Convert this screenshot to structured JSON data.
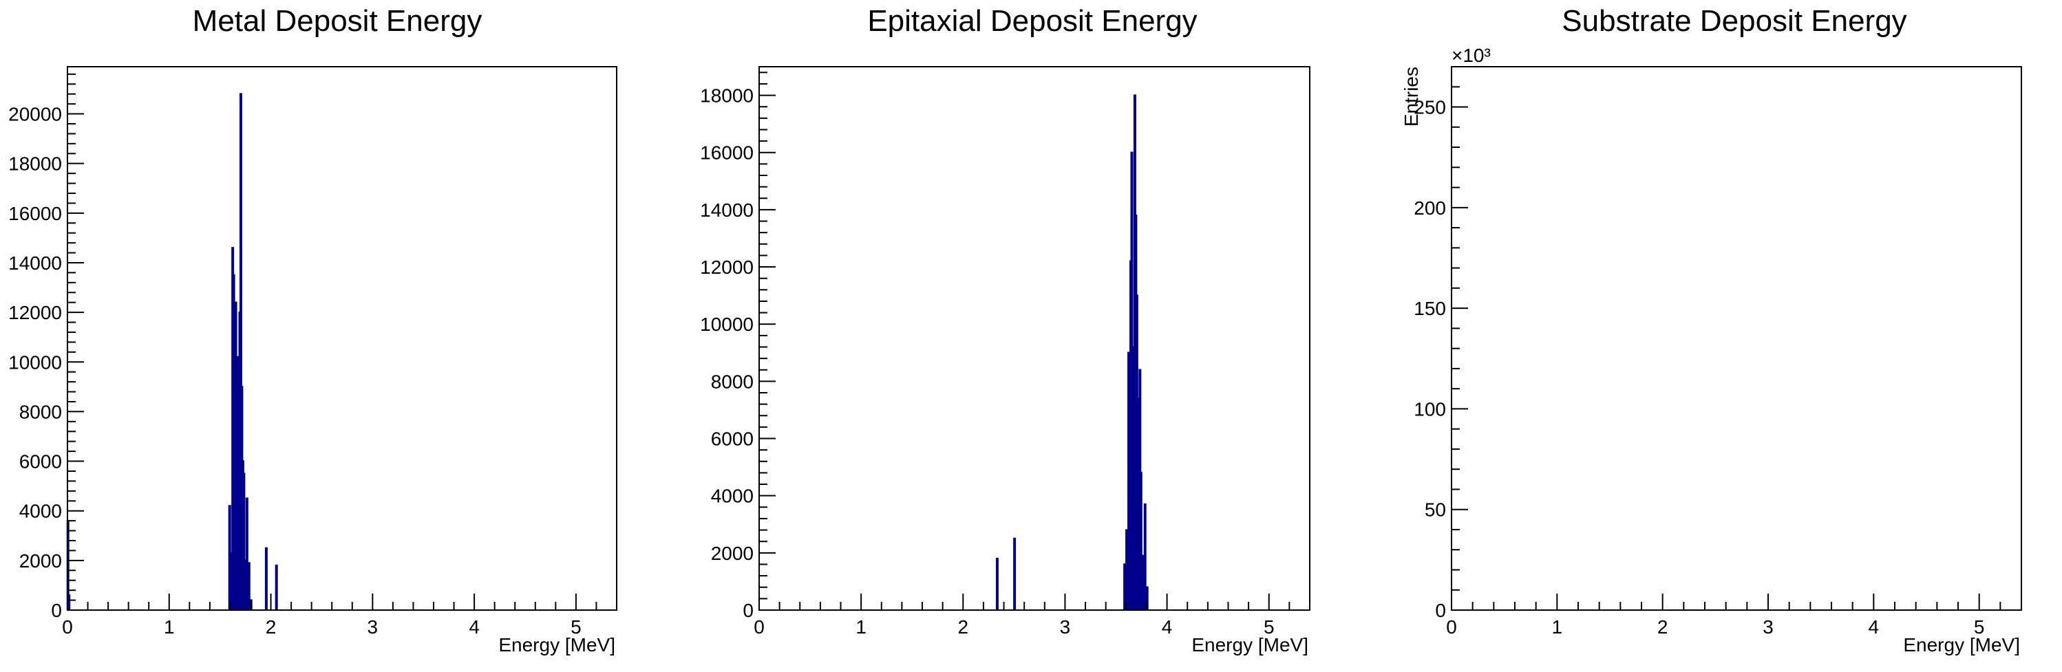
{
  "colors": {
    "histogram": "#00008b",
    "axis": "#000000",
    "background": "#ffffff"
  },
  "chart_data": [
    {
      "type": "bar",
      "title": "Metal Deposit Energy",
      "xlabel": "Energy [MeV]",
      "ylabel": "",
      "xlim": [
        0,
        5.4
      ],
      "ylim": [
        0,
        21900
      ],
      "x_ticks": [
        0,
        1,
        2,
        3,
        4,
        5
      ],
      "y_ticks": [
        0,
        2000,
        4000,
        6000,
        8000,
        10000,
        12000,
        14000,
        16000,
        18000,
        20000
      ],
      "y_exponent_label": "",
      "grid": false,
      "bins": [
        [
          0.0,
          3600
        ],
        [
          0.01,
          600
        ],
        [
          1.59,
          4200
        ],
        [
          1.6,
          2300
        ],
        [
          1.62,
          14600
        ],
        [
          1.63,
          13500
        ],
        [
          1.64,
          11000
        ],
        [
          1.65,
          12400
        ],
        [
          1.67,
          10200
        ],
        [
          1.68,
          6500
        ],
        [
          1.69,
          12000
        ],
        [
          1.7,
          20800
        ],
        [
          1.71,
          9000
        ],
        [
          1.72,
          6000
        ],
        [
          1.73,
          5500
        ],
        [
          1.74,
          2000
        ],
        [
          1.76,
          4500
        ],
        [
          1.78,
          1900
        ],
        [
          1.8,
          400
        ],
        [
          1.95,
          2500
        ],
        [
          2.05,
          1800
        ]
      ]
    },
    {
      "type": "bar",
      "title": "Epitaxial Deposit Energy",
      "xlabel": "Energy [MeV]",
      "ylabel": "",
      "xlim": [
        0,
        5.4
      ],
      "ylim": [
        0,
        19000
      ],
      "x_ticks": [
        0,
        1,
        2,
        3,
        4,
        5
      ],
      "y_ticks": [
        0,
        2000,
        4000,
        6000,
        8000,
        10000,
        12000,
        14000,
        16000,
        18000
      ],
      "y_exponent_label": "",
      "grid": false,
      "bins": [
        [
          2.33,
          1800
        ],
        [
          2.5,
          2500
        ],
        [
          3.58,
          1600
        ],
        [
          3.6,
          2800
        ],
        [
          3.62,
          9000
        ],
        [
          3.64,
          12200
        ],
        [
          3.65,
          16000
        ],
        [
          3.66,
          9200
        ],
        [
          3.67,
          7200
        ],
        [
          3.68,
          18000
        ],
        [
          3.69,
          13800
        ],
        [
          3.7,
          11000
        ],
        [
          3.72,
          7400
        ],
        [
          3.73,
          8400
        ],
        [
          3.74,
          4800
        ],
        [
          3.76,
          1900
        ],
        [
          3.78,
          3700
        ],
        [
          3.8,
          800
        ]
      ]
    },
    {
      "type": "bar",
      "title": "Substrate Deposit Energy",
      "xlabel": "Energy [MeV]",
      "ylabel": "Entries",
      "xlim": [
        0,
        5.4
      ],
      "ylim": [
        0,
        270
      ],
      "x_ticks": [
        0,
        1,
        2,
        3,
        4,
        5
      ],
      "y_ticks": [
        0,
        50,
        100,
        150,
        200,
        250
      ],
      "y_exponent_label": "×10³",
      "grid": false,
      "bins": []
    }
  ]
}
